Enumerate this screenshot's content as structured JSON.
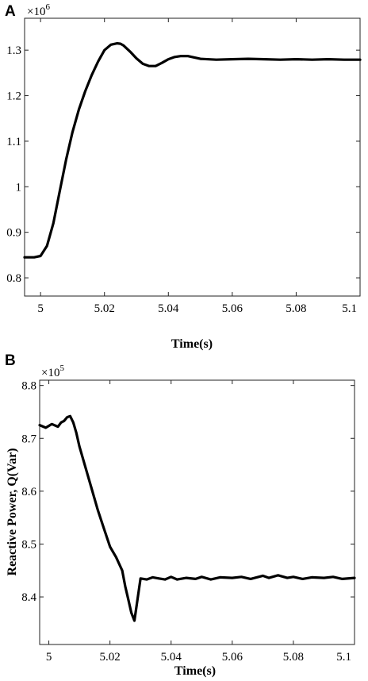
{
  "chart_data": [
    {
      "panel_label": "A",
      "type": "line",
      "title": "",
      "xlabel": "Time(s)",
      "ylabel": "",
      "y_multiplier": "×10",
      "y_multiplier_exp": "6",
      "xlim": [
        4.995,
        5.1
      ],
      "ylim": [
        0.76,
        1.37
      ],
      "xticks": [
        5,
        5.02,
        5.04,
        5.06,
        5.08,
        5.1
      ],
      "xtick_labels": [
        "5",
        "5.02",
        "5.04",
        "5.06",
        "5.08",
        "5.1"
      ],
      "yticks": [
        0.8,
        0.9,
        1.0,
        1.1,
        1.2,
        1.3
      ],
      "ytick_labels": [
        "0.8",
        "0.9",
        "1",
        "1.1",
        "1.2",
        "1.3"
      ],
      "grid": false,
      "series": [
        {
          "name": "",
          "x": [
            4.995,
            4.998,
            5.0,
            5.002,
            5.004,
            5.006,
            5.008,
            5.01,
            5.012,
            5.014,
            5.016,
            5.018,
            5.02,
            5.022,
            5.024,
            5.025,
            5.026,
            5.028,
            5.03,
            5.032,
            5.034,
            5.036,
            5.038,
            5.04,
            5.042,
            5.044,
            5.046,
            5.048,
            5.05,
            5.055,
            5.06,
            5.065,
            5.07,
            5.075,
            5.08,
            5.085,
            5.09,
            5.095,
            5.1
          ],
          "y": [
            0.845,
            0.845,
            0.848,
            0.87,
            0.92,
            0.99,
            1.06,
            1.12,
            1.17,
            1.21,
            1.245,
            1.275,
            1.3,
            1.312,
            1.315,
            1.314,
            1.31,
            1.297,
            1.282,
            1.27,
            1.265,
            1.265,
            1.272,
            1.28,
            1.285,
            1.287,
            1.287,
            1.284,
            1.281,
            1.279,
            1.28,
            1.281,
            1.28,
            1.279,
            1.28,
            1.279,
            1.28,
            1.279,
            1.279
          ]
        }
      ]
    },
    {
      "panel_label": "B",
      "type": "line",
      "title": "",
      "xlabel": "Time(s)",
      "ylabel": "Reactive Power, Q(Var)",
      "y_multiplier": "×10",
      "y_multiplier_exp": "5",
      "xlim": [
        4.997,
        5.1
      ],
      "ylim": [
        8.31,
        8.81
      ],
      "xticks": [
        5,
        5.02,
        5.04,
        5.06,
        5.08,
        5.1
      ],
      "xtick_labels": [
        "5",
        "5.02",
        "5.04",
        "5.06",
        "5.08",
        "5.1"
      ],
      "yticks": [
        8.4,
        8.5,
        8.6,
        8.7,
        8.8
      ],
      "ytick_labels": [
        "8.4",
        "8.5",
        "8.6",
        "8.7",
        "8.8"
      ],
      "grid": false,
      "series": [
        {
          "name": "",
          "x": [
            4.997,
            4.999,
            5.001,
            5.003,
            5.004,
            5.005,
            5.006,
            5.007,
            5.008,
            5.009,
            5.01,
            5.012,
            5.014,
            5.016,
            5.018,
            5.02,
            5.022,
            5.024,
            5.025,
            5.026,
            5.027,
            5.028,
            5.03,
            5.032,
            5.034,
            5.036,
            5.038,
            5.04,
            5.042,
            5.045,
            5.048,
            5.05,
            5.053,
            5.056,
            5.06,
            5.063,
            5.066,
            5.07,
            5.072,
            5.075,
            5.078,
            5.08,
            5.083,
            5.086,
            5.09,
            5.093,
            5.096,
            5.1
          ],
          "y": [
            8.725,
            8.72,
            8.727,
            8.722,
            8.73,
            8.733,
            8.74,
            8.742,
            8.73,
            8.71,
            8.685,
            8.645,
            8.605,
            8.565,
            8.53,
            8.495,
            8.475,
            8.45,
            8.42,
            8.395,
            8.37,
            8.355,
            8.435,
            8.433,
            8.437,
            8.435,
            8.433,
            8.438,
            8.433,
            8.436,
            8.434,
            8.438,
            8.433,
            8.437,
            8.436,
            8.438,
            8.434,
            8.44,
            8.436,
            8.441,
            8.436,
            8.438,
            8.434,
            8.437,
            8.436,
            8.438,
            8.434,
            8.436
          ]
        }
      ]
    }
  ]
}
